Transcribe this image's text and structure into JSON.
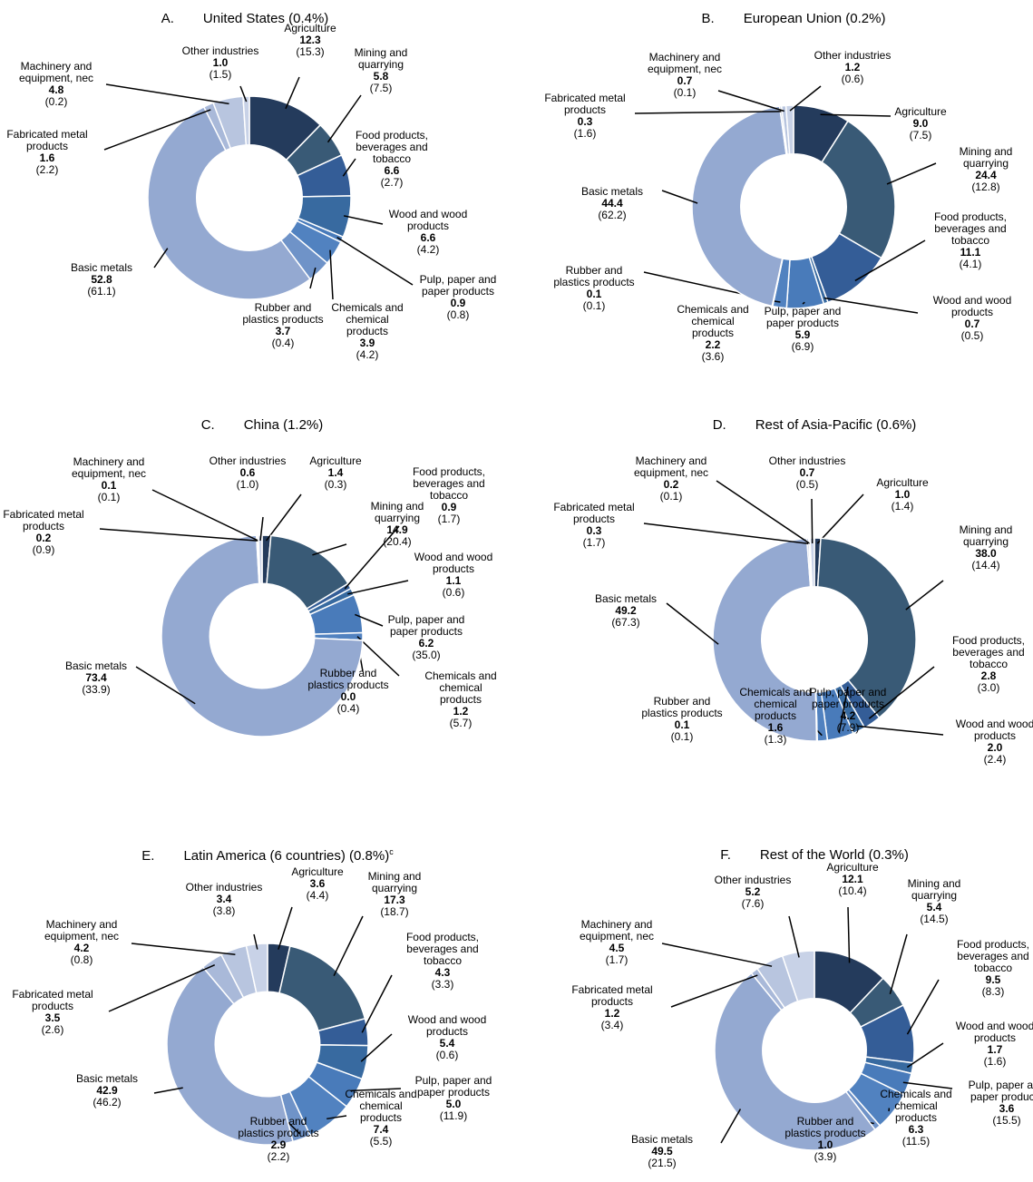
{
  "chart_data": [
    {
      "type": "pie",
      "label": "A.",
      "title": "United States (0.4%)",
      "categories": [
        "Agriculture",
        "Mining and quarrying",
        "Food products, beverages and tobacco",
        "Wood and wood products",
        "Pulp, paper and paper products",
        "Chemicals and chemical products",
        "Rubber and plastics products",
        "Basic metals",
        "Fabricated metal products",
        "Machinery and equipment, nec",
        "Other industries"
      ],
      "values": [
        12.3,
        5.8,
        6.6,
        6.6,
        0.9,
        3.9,
        3.7,
        52.8,
        1.6,
        4.8,
        1.0
      ],
      "value_labels": [
        "12.3",
        "5.8",
        "6.6",
        "6.6",
        "0.9",
        "3.9",
        "3.7",
        "52.8",
        "1.6",
        "4.8",
        "1.0"
      ],
      "share_labels": [
        "(15.3)",
        "(7.5)",
        "(2.7)",
        "(4.2)",
        "(0.8)",
        "(4.2)",
        "(0.4)",
        "(61.1)",
        "(2.2)",
        "(0.2)",
        "(1.5)"
      ],
      "colors": [
        "#243b5c",
        "#395a76",
        "#345d97",
        "#386aa0",
        "#497bba",
        "#5182c0",
        "#6f93c8",
        "#94a9d1",
        "#a9b9d9",
        "#b8c5df",
        "#c8d2e7"
      ]
    },
    {
      "type": "pie",
      "label": "B.",
      "title": "European Union (0.2%)",
      "categories": [
        "Agriculture",
        "Mining and quarrying",
        "Food products, beverages and tobacco",
        "Wood and wood products",
        "Pulp, paper and paper products",
        "Chemicals and chemical products",
        "Rubber and plastics products",
        "Basic metals",
        "Fabricated metal products",
        "Machinery and equipment, nec",
        "Other industries"
      ],
      "values": [
        9.0,
        24.4,
        11.1,
        0.7,
        5.9,
        2.2,
        0.1,
        44.4,
        0.3,
        0.7,
        1.2
      ],
      "value_labels": [
        "9.0",
        "24.4",
        "11.1",
        "0.7",
        "5.9",
        "2.2",
        "0.1",
        "44.4",
        "0.3",
        "0.7",
        "1.2"
      ],
      "share_labels": [
        "(7.5)",
        "(12.8)",
        "(4.1)",
        "(0.5)",
        "(6.9)",
        "(3.6)",
        "(0.1)",
        "(62.2)",
        "(1.6)",
        "(0.1)",
        "(0.6)"
      ],
      "colors": [
        "#243b5c",
        "#395a76",
        "#345d97",
        "#386aa0",
        "#497bba",
        "#5182c0",
        "#6f93c8",
        "#94a9d1",
        "#a9b9d9",
        "#b8c5df",
        "#c8d2e7"
      ]
    },
    {
      "type": "pie",
      "label": "C.",
      "title": "China (1.2%)",
      "categories": [
        "Agriculture",
        "Mining and quarrying",
        "Food products, beverages and tobacco",
        "Wood and wood products",
        "Pulp, paper and paper products",
        "Chemicals and chemical products",
        "Rubber and plastics products",
        "Basic metals",
        "Fabricated metal products",
        "Machinery and equipment, nec",
        "Other industries"
      ],
      "values": [
        1.4,
        14.9,
        0.9,
        1.1,
        6.2,
        1.2,
        0.0,
        73.4,
        0.2,
        0.1,
        0.6
      ],
      "value_labels": [
        "1.4",
        "14.9",
        "0.9",
        "1.1",
        "6.2",
        "1.2",
        "0.0",
        "73.4",
        "0.2",
        "0.1",
        "0.6"
      ],
      "share_labels": [
        "(0.3)",
        "(20.4)",
        "(1.7)",
        "(0.6)",
        "(35.0)",
        "(5.7)",
        "(0.4)",
        "(33.9)",
        "(0.9)",
        "(0.1)",
        "(1.0)"
      ],
      "colors": [
        "#243b5c",
        "#395a76",
        "#345d97",
        "#386aa0",
        "#497bba",
        "#5182c0",
        "#6f93c8",
        "#94a9d1",
        "#a9b9d9",
        "#b8c5df",
        "#c8d2e7"
      ]
    },
    {
      "type": "pie",
      "label": "D.",
      "title": "Rest of Asia-Pacific (0.6%)",
      "categories": [
        "Agriculture",
        "Mining and quarrying",
        "Food products, beverages and tobacco",
        "Wood and wood products",
        "Pulp, paper and paper products",
        "Chemicals and chemical products",
        "Rubber and plastics products",
        "Basic metals",
        "Fabricated metal products",
        "Machinery and equipment, nec",
        "Other industries"
      ],
      "values": [
        1.0,
        38.0,
        2.8,
        2.0,
        4.2,
        1.6,
        0.1,
        49.2,
        0.3,
        0.2,
        0.7
      ],
      "value_labels": [
        "1.0",
        "38.0",
        "2.8",
        "2.0",
        "4.2",
        "1.6",
        "0.1",
        "49.2",
        "0.3",
        "0.2",
        "0.7"
      ],
      "share_labels": [
        "(1.4)",
        "(14.4)",
        "(3.0)",
        "(2.4)",
        "(7.9)",
        "(1.3)",
        "(0.1)",
        "(67.3)",
        "(1.7)",
        "(0.1)",
        "(0.5)"
      ],
      "colors": [
        "#243b5c",
        "#395a76",
        "#345d97",
        "#386aa0",
        "#497bba",
        "#5182c0",
        "#6f93c8",
        "#94a9d1",
        "#a9b9d9",
        "#b8c5df",
        "#c8d2e7"
      ]
    },
    {
      "type": "pie",
      "label": "E.",
      "title": "Latin America (6 countries) (0.8%)",
      "title_note": "c",
      "categories": [
        "Agriculture",
        "Mining and quarrying",
        "Food products, beverages and tobacco",
        "Wood and wood products",
        "Pulp, paper and paper products",
        "Chemicals and chemical products",
        "Rubber and plastics products",
        "Basic metals",
        "Fabricated metal products",
        "Machinery and equipment, nec",
        "Other industries"
      ],
      "values": [
        3.6,
        17.3,
        4.3,
        5.4,
        5.0,
        7.4,
        2.9,
        42.9,
        3.5,
        4.2,
        3.4
      ],
      "value_labels": [
        "3.6",
        "17.3",
        "4.3",
        "5.4",
        "5.0",
        "7.4",
        "2.9",
        "42.9",
        "3.5",
        "4.2",
        "3.4"
      ],
      "share_labels": [
        "(4.4)",
        "(18.7)",
        "(3.3)",
        "(0.6)",
        "(11.9)",
        "(5.5)",
        "(2.2)",
        "(46.2)",
        "(2.6)",
        "(0.8)",
        "(3.8)"
      ],
      "colors": [
        "#243b5c",
        "#395a76",
        "#345d97",
        "#386aa0",
        "#497bba",
        "#5182c0",
        "#6f93c8",
        "#94a9d1",
        "#a9b9d9",
        "#b8c5df",
        "#c8d2e7"
      ]
    },
    {
      "type": "pie",
      "label": "F.",
      "title": "Rest of the World (0.3%)",
      "categories": [
        "Agriculture",
        "Mining and quarrying",
        "Food products, beverages and tobacco",
        "Wood and wood products",
        "Pulp, paper and paper products",
        "Chemicals and chemical products",
        "Rubber and plastics products",
        "Basic metals",
        "Fabricated metal products",
        "Machinery and equipment, nec",
        "Other industries"
      ],
      "values": [
        12.1,
        5.4,
        9.5,
        1.7,
        3.6,
        6.3,
        1.0,
        49.5,
        1.2,
        4.5,
        5.2
      ],
      "value_labels": [
        "12.1",
        "5.4",
        "9.5",
        "1.7",
        "3.6",
        "6.3",
        "1.0",
        "49.5",
        "1.2",
        "4.5",
        "5.2"
      ],
      "share_labels": [
        "(10.4)",
        "(14.5)",
        "(8.3)",
        "(1.6)",
        "(15.5)",
        "(11.5)",
        "(3.9)",
        "(21.5)",
        "(3.4)",
        "(1.7)",
        "(7.6)"
      ],
      "colors": [
        "#243b5c",
        "#395a76",
        "#345d97",
        "#386aa0",
        "#497bba",
        "#5182c0",
        "#6f93c8",
        "#94a9d1",
        "#a9b9d9",
        "#b8c5df",
        "#c8d2e7"
      ]
    }
  ]
}
